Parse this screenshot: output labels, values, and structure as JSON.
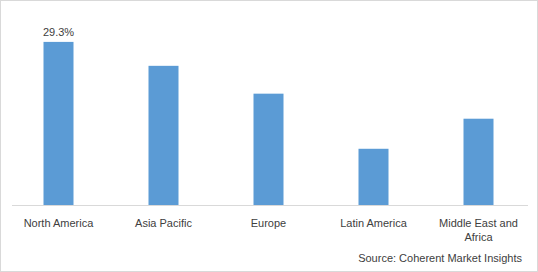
{
  "chart_data": {
    "type": "bar",
    "categories": [
      "North America",
      "Asia Pacific",
      "Europe",
      "Latin America",
      "Middle East and Africa"
    ],
    "values": [
      29.3,
      25.0,
      20.0,
      10.1,
      15.5
    ],
    "value_labels": [
      "29.3%",
      null,
      null,
      null,
      null
    ],
    "data_labels": true,
    "color": "#5b9bd5",
    "ylim": [
      0,
      30
    ],
    "tick_labels": "x",
    "grid": false,
    "source": "Source: Coherent Market Insights"
  }
}
